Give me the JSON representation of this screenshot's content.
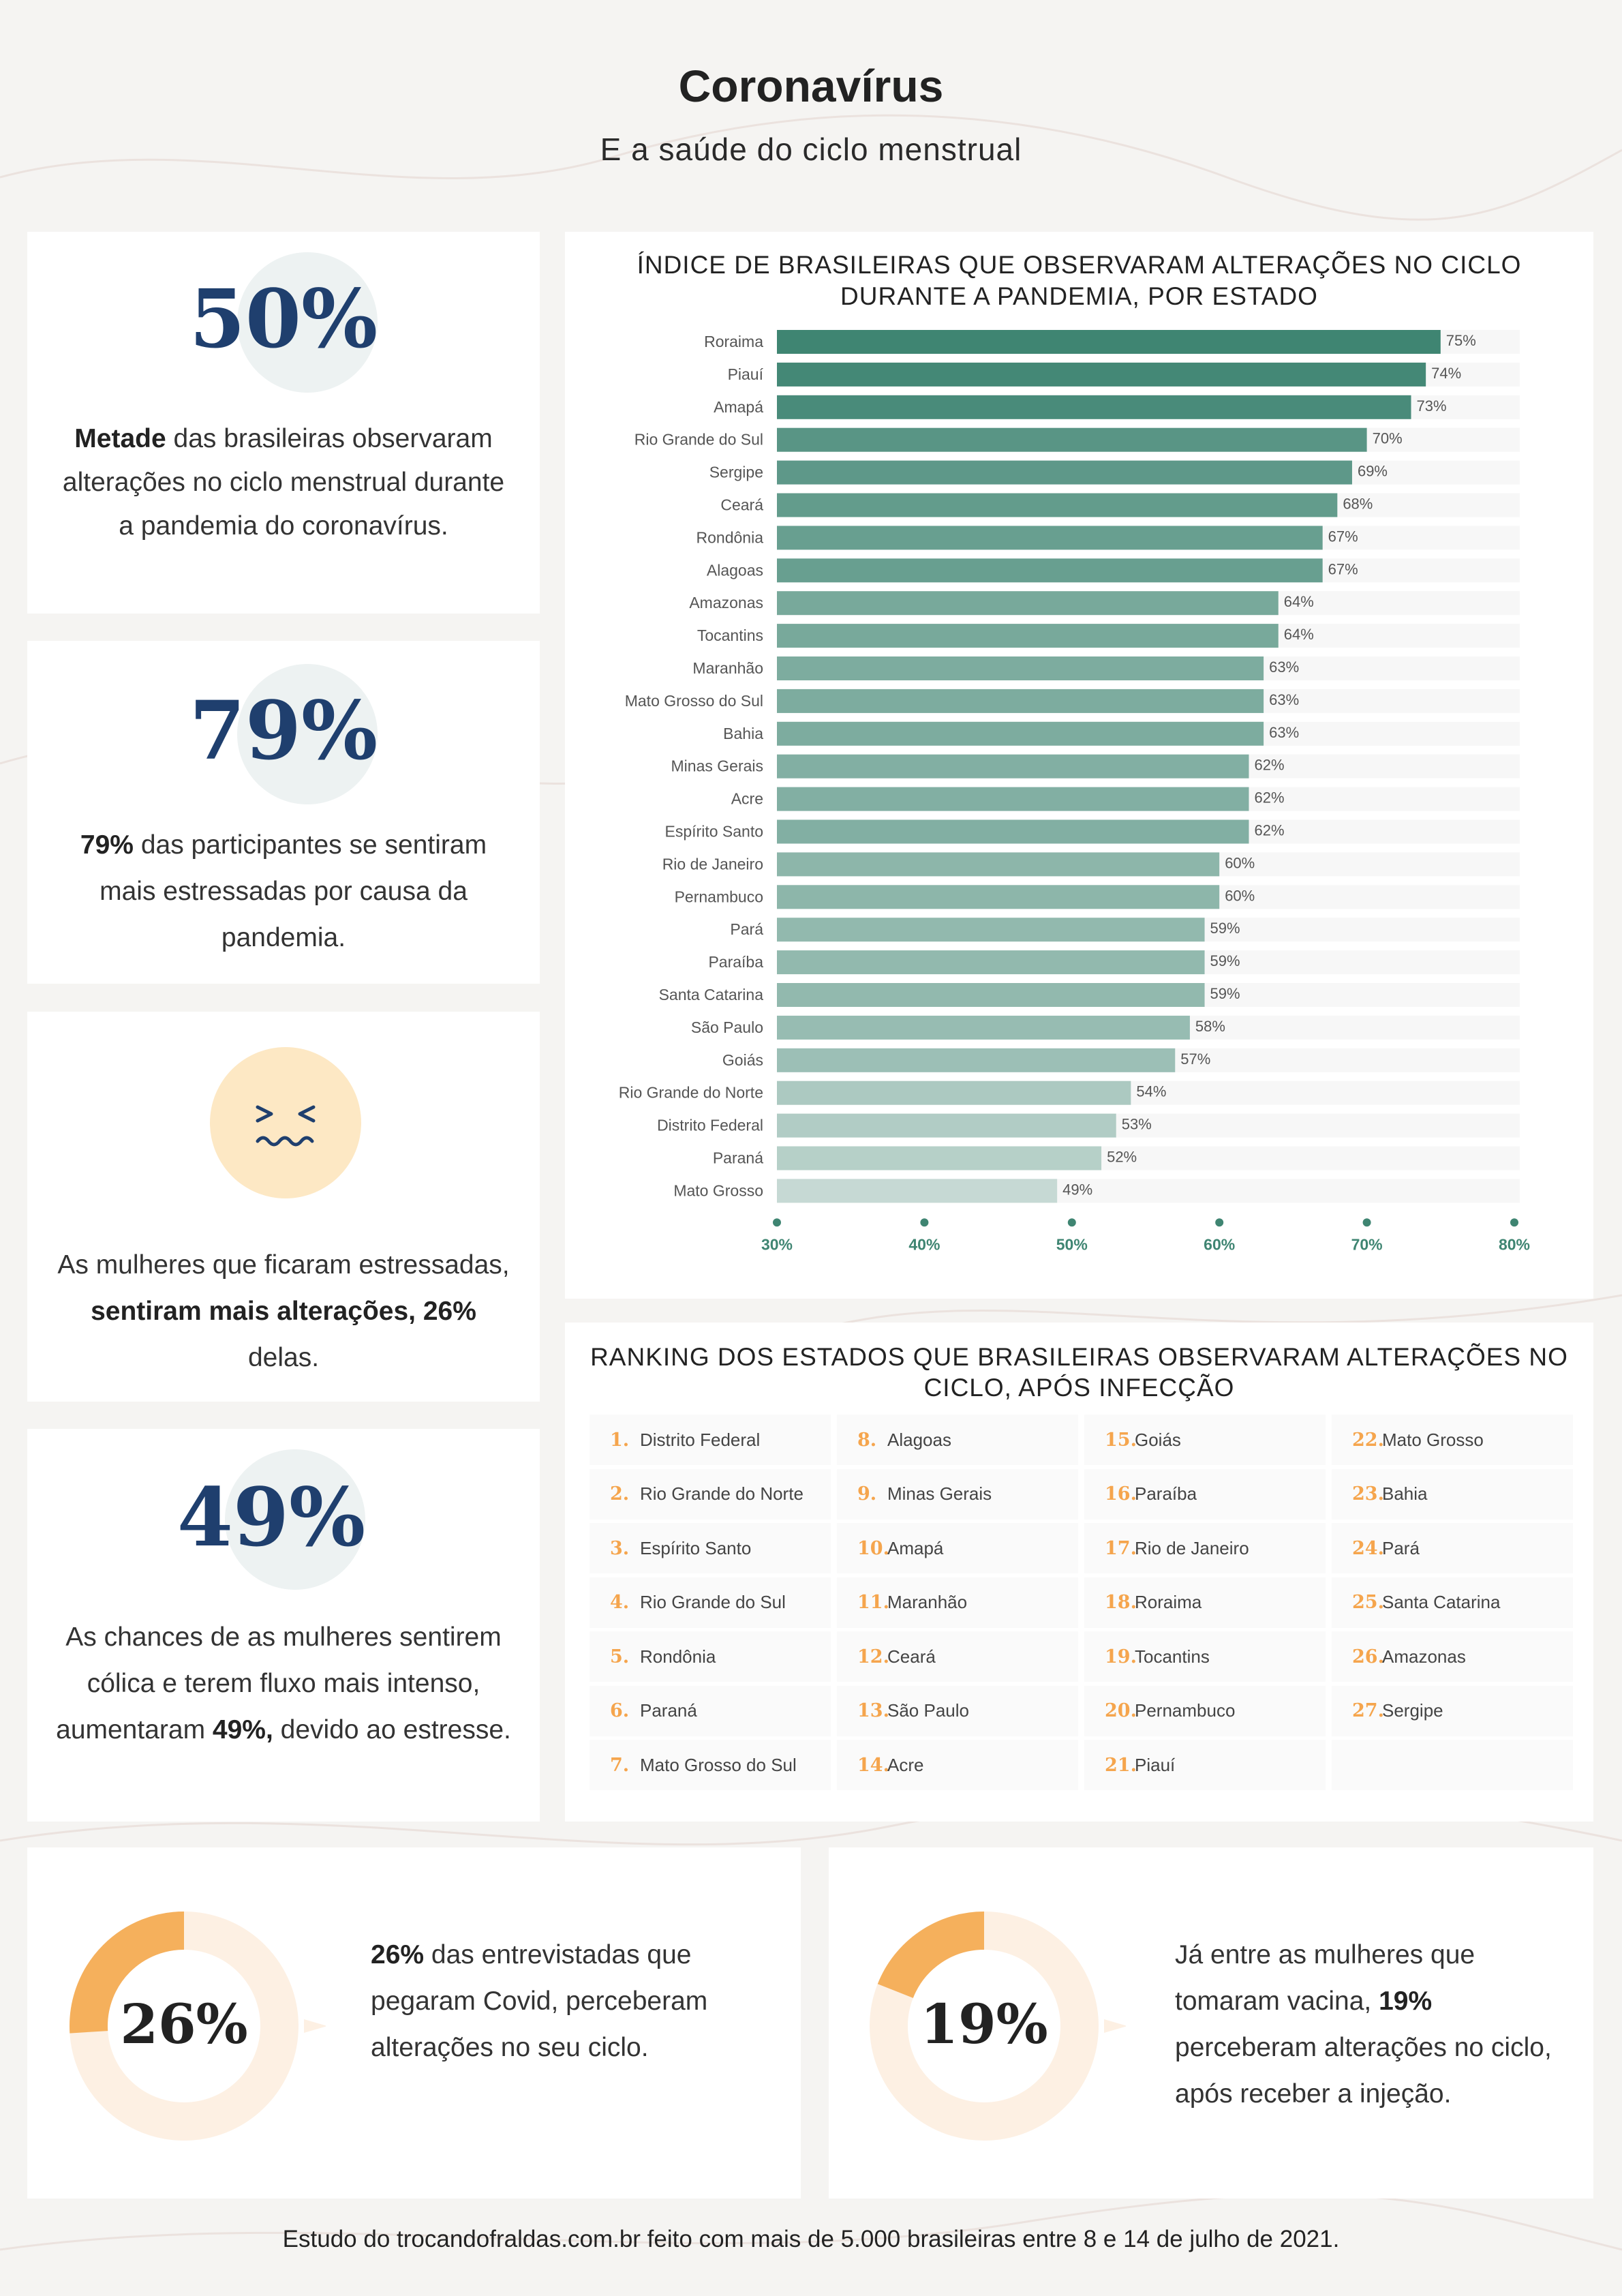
{
  "header": {
    "title": "Coronavírus",
    "subtitle": "E a saúde do ciclo menstrual"
  },
  "stats": [
    {
      "value": "50%",
      "bold": "Metade",
      "text": " das brasileiras observaram alterações no ciclo menstrual durante a pandemia do coronavírus."
    },
    {
      "value": "79%",
      "bold": "79%",
      "text": " das participantes se sentiram mais estressadas por causa da pandemia."
    },
    {
      "text_a": "As mulheres que ficaram estressadas, ",
      "bold": "sentiram mais alterações, 26%",
      "text_b": " delas.",
      "icon": "stressed-face-icon"
    },
    {
      "value": "49%",
      "text_a": "As chances de as mulheres sentirem cólica e terem fluxo mais intenso, aumentaram ",
      "bold": "49%,",
      "text_b": " devido ao estresse."
    }
  ],
  "chart_data": {
    "type": "bar",
    "orientation": "horizontal",
    "title_line1": "ÍNDICE DE BRASILEIRAS QUE OBSERVARAM ALTERAÇÕES NO CICLO",
    "title_line2": "DURANTE A PANDEMIA, POR ESTADO",
    "categories": [
      "Roraima",
      "Piauí",
      "Amapá",
      "Rio Grande do Sul",
      "Sergipe",
      "Ceará",
      "Rondônia",
      "Alagoas",
      "Amazonas",
      "Tocantins",
      "Maranhão",
      "Mato Grosso do Sul",
      "Bahia",
      "Minas Gerais",
      "Acre",
      "Espírito Santo",
      "Rio de Janeiro",
      "Pernambuco",
      "Pará",
      "Paraíba",
      "Santa Catarina",
      "São Paulo",
      "Goiás",
      "Rio Grande do Norte",
      "Distrito Federal",
      "Paraná",
      "Mato Grosso"
    ],
    "values": [
      75,
      74,
      73,
      70,
      69,
      68,
      67,
      67,
      64,
      64,
      63,
      63,
      63,
      62,
      62,
      62,
      60,
      60,
      59,
      59,
      59,
      58,
      57,
      54,
      53,
      52,
      49
    ],
    "value_labels": [
      "75%",
      "74%",
      "73%",
      "70%",
      "69%",
      "68%",
      "67%",
      "67%",
      "64%",
      "64%",
      "63%",
      "63%",
      "63%",
      "62%",
      "62%",
      "62%",
      "60%",
      "60%",
      "59%",
      "59%",
      "59%",
      "58%",
      "57%",
      "54%",
      "53%",
      "52%",
      "49%"
    ],
    "xlim": [
      30,
      80
    ],
    "xticks": [
      "30%",
      "40%",
      "50%",
      "60%",
      "70%",
      "80%"
    ],
    "xtick_values": [
      30,
      40,
      50,
      60,
      70,
      80
    ],
    "color_high": "#3f8572",
    "color_low": "#d8e5e1"
  },
  "ranking": {
    "title_line1": "RANKING DOS ESTADOS QUE BRASILEIRAS OBSERVARAM ALTERAÇÕES NO",
    "title_line2": "CICLO, APÓS INFECÇÃO",
    "items": [
      {
        "num": "1.",
        "name": "Distrito Federal"
      },
      {
        "num": "2.",
        "name": "Rio Grande do Norte"
      },
      {
        "num": "3.",
        "name": "Espírito Santo"
      },
      {
        "num": "4.",
        "name": "Rio Grande do Sul"
      },
      {
        "num": "5.",
        "name": "Rondônia"
      },
      {
        "num": "6.",
        "name": "Paraná"
      },
      {
        "num": "7.",
        "name": "Mato Grosso do Sul"
      },
      {
        "num": "8.",
        "name": "Alagoas"
      },
      {
        "num": "9.",
        "name": "Minas Gerais"
      },
      {
        "num": "10.",
        "name": "Amapá"
      },
      {
        "num": "11.",
        "name": "Maranhão"
      },
      {
        "num": "12.",
        "name": "Ceará"
      },
      {
        "num": "13.",
        "name": "São Paulo"
      },
      {
        "num": "14.",
        "name": "Acre"
      },
      {
        "num": "15.",
        "name": "Goiás"
      },
      {
        "num": "16.",
        "name": "Paraíba"
      },
      {
        "num": "17.",
        "name": "Rio de Janeiro"
      },
      {
        "num": "18.",
        "name": "Roraima"
      },
      {
        "num": "19.",
        "name": "Tocantins"
      },
      {
        "num": "20.",
        "name": "Pernambuco"
      },
      {
        "num": "21.",
        "name": "Piauí"
      },
      {
        "num": "22.",
        "name": "Mato Grosso"
      },
      {
        "num": "23.",
        "name": "Bahia"
      },
      {
        "num": "24.",
        "name": "Pará"
      },
      {
        "num": "25.",
        "name": "Santa Catarina"
      },
      {
        "num": "26.",
        "name": "Amazonas"
      },
      {
        "num": "27.",
        "name": "Sergipe"
      }
    ]
  },
  "donuts": [
    {
      "value": "26%",
      "fraction": 0.26,
      "bold": "26%",
      "text": " das entrevistadas que pegaram Covid, perceberam alterações no seu ciclo."
    },
    {
      "value": "19%",
      "fraction": 0.19,
      "text_a": "Já entre as mulheres que tomaram vacina, ",
      "bold": "19%",
      "text_b": " perceberam alterações no ciclo, após receber a injeção."
    }
  ],
  "colors": {
    "accent_orange": "#f5b05c",
    "donut_track": "#fdf0e3",
    "stat_blue": "#1f3f6e",
    "teal": "#3f8572"
  },
  "footer": "Estudo do trocandofraldas.com.br feito com mais de 5.000 brasileiras entre 8 e 14 de julho de 2021."
}
